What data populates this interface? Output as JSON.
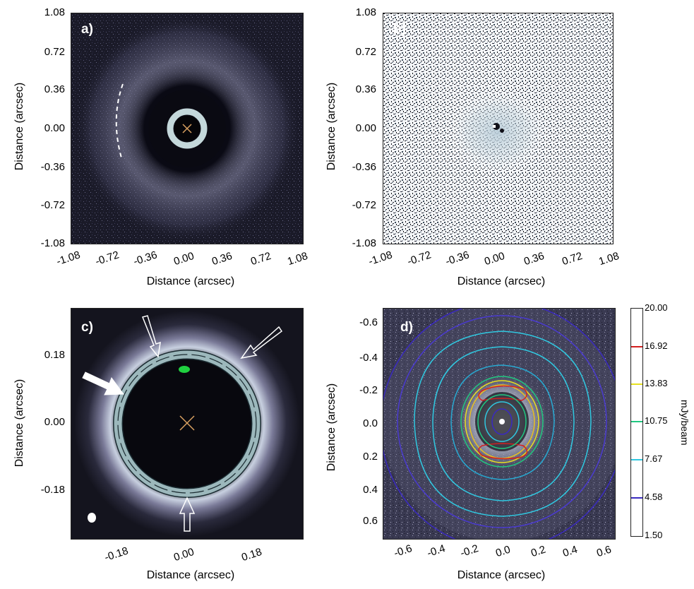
{
  "panels": {
    "a": {
      "label": "a)",
      "ticks_y": [
        "1.08",
        "0.72",
        "0.36",
        "0.00",
        "-0.36",
        "-0.72",
        "-1.08"
      ],
      "ticks_x": [
        "-1.08",
        "-0.72",
        "-0.36",
        "0.00",
        "0.36",
        "0.72",
        "1.08"
      ],
      "xlabel": "Distance (arcsec)",
      "ylabel": "Distance (arcsec)"
    },
    "b": {
      "label": "b)",
      "ticks_y": [
        "1.08",
        "0.72",
        "0.36",
        "0.00",
        "-0.36",
        "-0.72",
        "-1.08"
      ],
      "ticks_x": [
        "-1.08",
        "-0.72",
        "-0.36",
        "0.00",
        "0.36",
        "0.72",
        "1.08"
      ],
      "xlabel": "Distance (arcsec)",
      "ylabel": "Distance (arcsec)"
    },
    "c": {
      "label": "c)",
      "ticks_y": [
        "0.18",
        "0.00",
        "-0.18"
      ],
      "ticks_x": [
        "-0.18",
        "0.00",
        "0.18"
      ],
      "xlabel": "Distance (arcsec)",
      "ylabel": "Distance (arcsec)"
    },
    "d": {
      "label": "d)",
      "ticks_y": [
        "-0.6",
        "-0.4",
        "-0.2",
        "0.0",
        "0.2",
        "0.4",
        "0.6"
      ],
      "ticks_x": [
        "-0.6",
        "-0.4",
        "-0.2",
        "0.0",
        "0.2",
        "0.4",
        "0.6"
      ],
      "xlabel": "Distance (arcsec)",
      "ylabel": "Distance (arcsec)"
    }
  },
  "colorbar": {
    "label": "mJy/beam",
    "ticks": [
      "20.00",
      "16.92",
      "13.83",
      "10.75",
      "7.67",
      "4.58",
      "1.50"
    ],
    "level_colors": [
      "#222222",
      "#d42020",
      "#e6e020",
      "#20c880",
      "#30c8e0",
      "#3a2ac0",
      "#222222"
    ]
  },
  "colors": {
    "background_dark": "#0a0a12",
    "ring_light": "#d8eef2",
    "star_marker": "#d8a060",
    "green_spot": "#20d040"
  }
}
